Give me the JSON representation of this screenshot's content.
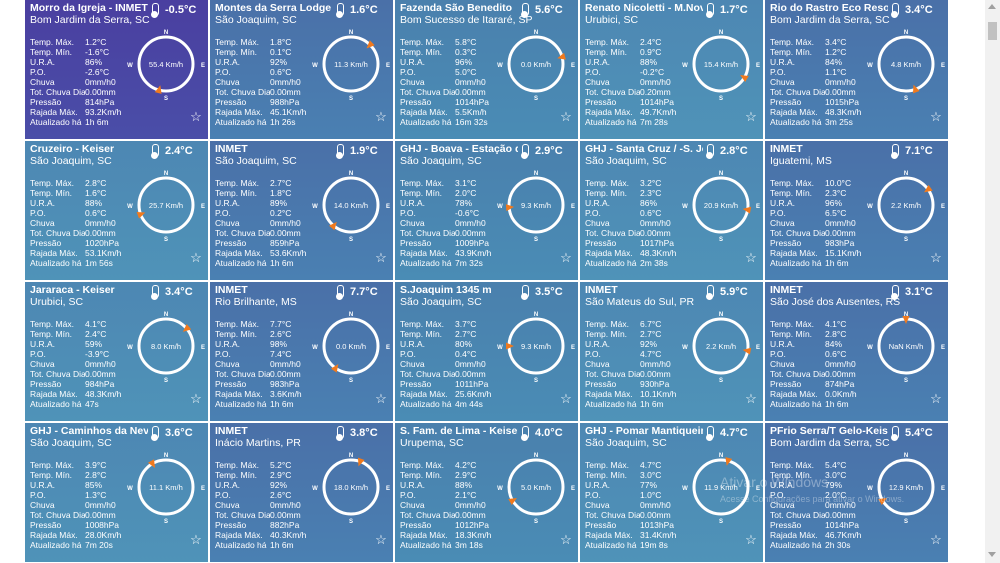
{
  "labels": {
    "tmax": "Temp. Máx.",
    "tmin": "Temp. Mín.",
    "ura": "U.R.A.",
    "po": "P.O.",
    "chuva": "Chuva",
    "tot": "Tot. Chuva Dia",
    "pressao": "Pressão",
    "rajada": "Rajada Máx.",
    "atualizado": "Atualizado há"
  },
  "compass_letters": {
    "n": "N",
    "s": "S",
    "e": "E",
    "w": "W"
  },
  "colors": {
    "arrow": "#f07a1e",
    "ring": "#ffffff"
  },
  "star_icon": "star-outline-icon",
  "watermark": {
    "title": "Ativar o Windows",
    "subtitle": "Acesse Configurações para ativar o Windows."
  },
  "stations": [
    {
      "name": "Morro da Igreja - INMET",
      "location": "Bom Jardim da Serra, SC",
      "temp": "-0.5°C",
      "tmax": "1.2°C",
      "tmin": "-1.6°C",
      "ura": "86%",
      "po": "-2.6°C",
      "chuva": "0mm/h0",
      "tot": "0.00mm",
      "pressao": "814hPa",
      "rajada": "93.2Km/h",
      "atualizado": "1h 6m",
      "wind": "55.4 Km/h",
      "dir_deg": 195
    },
    {
      "name": "Montes da Serra Lodge",
      "location": "São Joaquim, SC",
      "temp": "1.6°C",
      "tmax": "1.8°C",
      "tmin": "0.1°C",
      "ura": "92%",
      "po": "0.6°C",
      "chuva": "0mm/h0",
      "tot": "0.00mm",
      "pressao": "988hPa",
      "rajada": "45.1Km/h",
      "atualizado": "1h 26s",
      "wind": "11.3 Km/h",
      "dir_deg": 45
    },
    {
      "name": "Fazenda São Benedito",
      "location": "Bom Sucesso de Itararé, SP",
      "temp": "5.6°C",
      "tmax": "5.8°C",
      "tmin": "0.3°C",
      "ura": "96%",
      "po": "5.0°C",
      "chuva": "0mm/h0",
      "tot": "0.00mm",
      "pressao": "1014hPa",
      "rajada": "5.5Km/h",
      "atualizado": "16m 32s",
      "wind": "0.0 Km/h",
      "dir_deg": 75
    },
    {
      "name": "Renato Nicoletti - M.Novo",
      "location": "Urubici, SC",
      "temp": "1.7°C",
      "tmax": "2.4°C",
      "tmin": "0.9°C",
      "ura": "88%",
      "po": "-0.2°C",
      "chuva": "0mm/h0",
      "tot": "0.20mm",
      "pressao": "1014hPa",
      "rajada": "49.7Km/h",
      "atualizado": "7m 28s",
      "wind": "15.4 Km/h",
      "dir_deg": 120
    },
    {
      "name": "Rio do Rastro Eco Resort",
      "location": "Bom Jardim da Serra, SC",
      "temp": "3.4°C",
      "tmax": "3.4°C",
      "tmin": "1.2°C",
      "ura": "84%",
      "po": "1.1°C",
      "chuva": "0mm/h0",
      "tot": "0.00mm",
      "pressao": "1015hPa",
      "rajada": "48.3Km/h",
      "atualizado": "3m 25s",
      "wind": "4.8 Km/h",
      "dir_deg": 160
    },
    {
      "name": "Cruzeiro - Keiser",
      "location": "São Joaquim, SC",
      "temp": "2.4°C",
      "tmax": "2.8°C",
      "tmin": "1.6°C",
      "ura": "88%",
      "po": "0.6°C",
      "chuva": "0mm/h0",
      "tot": "0.00mm",
      "pressao": "1020hPa",
      "rajada": "53.1Km/h",
      "atualizado": "1m 56s",
      "wind": "25.7 Km/h",
      "dir_deg": 250
    },
    {
      "name": "INMET",
      "location": "São Joaquim, SC",
      "temp": "1.9°C",
      "tmax": "2.7°C",
      "tmin": "1.8°C",
      "ura": "89%",
      "po": "0.2°C",
      "chuva": "0mm/h0",
      "tot": "0.00mm",
      "pressao": "859hPa",
      "rajada": "53.6Km/h",
      "atualizado": "1h 6m",
      "wind": "14.0 Km/h",
      "dir_deg": 220
    },
    {
      "name": "GHJ - Boava - Estação da",
      "location": "São Joaquim, SC",
      "temp": "2.9°C",
      "tmax": "3.1°C",
      "tmin": "2.0°C",
      "ura": "78%",
      "po": "-0.6°C",
      "chuva": "0mm/h0",
      "tot": "0.00mm",
      "pressao": "1009hPa",
      "rajada": "43.9Km/h",
      "atualizado": "7m 32s",
      "wind": "9.3 Km/h",
      "dir_deg": 265
    },
    {
      "name": "GHJ - Santa Cruz / -S. Jo",
      "location": "São Joaquim, SC",
      "temp": "2.8°C",
      "tmax": "3.2°C",
      "tmin": "2.3°C",
      "ura": "86%",
      "po": "0.6°C",
      "chuva": "0mm/h0",
      "tot": "0.00mm",
      "pressao": "1017hPa",
      "rajada": "48.3Km/h",
      "atualizado": "2m 38s",
      "wind": "20.9 Km/h",
      "dir_deg": 100
    },
    {
      "name": "INMET",
      "location": "Iguatemi, MS",
      "temp": "7.1°C",
      "tmax": "10.0°C",
      "tmin": "2.3°C",
      "ura": "96%",
      "po": "6.5°C",
      "chuva": "0mm/h0",
      "tot": "0.00mm",
      "pressao": "983hPa",
      "rajada": "15.1Km/h",
      "atualizado": "1h 6m",
      "wind": "2.2 Km/h",
      "dir_deg": 55
    },
    {
      "name": "Jararaca - Keiser",
      "location": "Urubici, SC",
      "temp": "3.4°C",
      "tmax": "4.1°C",
      "tmin": "2.4°C",
      "ura": "59%",
      "po": "-3.9°C",
      "chuva": "0mm/h0",
      "tot": "0.00mm",
      "pressao": "984hPa",
      "rajada": "48.3Km/h",
      "atualizado": "47s",
      "wind": "8.0 Km/h",
      "dir_deg": 50
    },
    {
      "name": "INMET",
      "location": "Rio Brilhante, MS",
      "temp": "7.7°C",
      "tmax": "7.7°C",
      "tmin": "2.6°C",
      "ura": "98%",
      "po": "7.4°C",
      "chuva": "0mm/h0",
      "tot": "0.00mm",
      "pressao": "983hPa",
      "rajada": "3.6Km/h",
      "atualizado": "1h 6m",
      "wind": "0.0 Km/h",
      "dir_deg": 215
    },
    {
      "name": "S.Joaquim 1345 m",
      "location": "São Joaquim, SC",
      "temp": "3.5°C",
      "tmax": "3.7°C",
      "tmin": "2.7°C",
      "ura": "80%",
      "po": "0.4°C",
      "chuva": "0mm/h0",
      "tot": "0.00mm",
      "pressao": "1011hPa",
      "rajada": "25.6Km/h",
      "atualizado": "4m 44s",
      "wind": "9.3 Km/h",
      "dir_deg": 270
    },
    {
      "name": "INMET",
      "location": "São Mateus do Sul, PR",
      "temp": "5.9°C",
      "tmax": "6.7°C",
      "tmin": "2.7°C",
      "ura": "92%",
      "po": "4.7°C",
      "chuva": "0mm/h0",
      "tot": "0.00mm",
      "pressao": "930hPa",
      "rajada": "10.1Km/h",
      "atualizado": "1h 6m",
      "wind": "2.2 Km/h",
      "dir_deg": 100
    },
    {
      "name": "INMET",
      "location": "São José dos Ausentes, RS",
      "temp": "3.1°C",
      "tmax": "4.1°C",
      "tmin": "2.8°C",
      "ura": "84%",
      "po": "0.6°C",
      "chuva": "0mm/h0",
      "tot": "0.00mm",
      "pressao": "874hPa",
      "rajada": "0.0Km/h",
      "atualizado": "1h 6m",
      "wind": "NaN Km/h",
      "dir_deg": 0
    },
    {
      "name": "GHJ - Caminhos da Neve. F",
      "location": "São Joaquim, SC",
      "temp": "3.6°C",
      "tmax": "3.9°C",
      "tmin": "2.8°C",
      "ura": "85%",
      "po": "1.3°C",
      "chuva": "0mm/h0",
      "tot": "0.00mm",
      "pressao": "1008hPa",
      "rajada": "28.0Km/h",
      "atualizado": "7m 20s",
      "wind": "11.1 Km/h",
      "dir_deg": 330
    },
    {
      "name": "INMET",
      "location": "Inácio Martins, PR",
      "temp": "3.8°C",
      "tmax": "5.2°C",
      "tmin": "2.9°C",
      "ura": "92%",
      "po": "2.6°C",
      "chuva": "0mm/h0",
      "tot": "0.00mm",
      "pressao": "882hPa",
      "rajada": "40.3Km/h",
      "atualizado": "1h 6m",
      "wind": "18.0 Km/h",
      "dir_deg": 20
    },
    {
      "name": "S. Fam. de Lima - Keiser",
      "location": "Urupema, SC",
      "temp": "4.0°C",
      "tmax": "4.2°C",
      "tmin": "2.9°C",
      "ura": "88%",
      "po": "2.1°C",
      "chuva": "0mm/h0",
      "tot": "0.00mm",
      "pressao": "1012hPa",
      "rajada": "18.3Km/h",
      "atualizado": "3m 18s",
      "wind": "5.0 Km/h",
      "dir_deg": 240
    },
    {
      "name": "GHJ - Pomar Mantiqueira B",
      "location": "São Joaquim, SC",
      "temp": "4.7°C",
      "tmax": "4.7°C",
      "tmin": "3.0°C",
      "ura": "77%",
      "po": "1.0°C",
      "chuva": "0mm/h0",
      "tot": "0.00mm",
      "pressao": "1013hPa",
      "rajada": "31.4Km/h",
      "atualizado": "19m 8s",
      "wind": "11.9 Km/h",
      "dir_deg": 15
    },
    {
      "name": "PFrio Serra/T Gelo-Keiser",
      "location": "Bom Jardim da Serra, SC",
      "temp": "5.4°C",
      "tmax": "5.4°C",
      "tmin": "3.0°C",
      "ura": "79%",
      "po": "2.0°C",
      "chuva": "0mm/h0",
      "tot": "0.00mm",
      "pressao": "1014hPa",
      "rajada": "46.7Km/h",
      "atualizado": "2h 30s",
      "wind": "12.9 Km/h",
      "dir_deg": 240
    }
  ]
}
